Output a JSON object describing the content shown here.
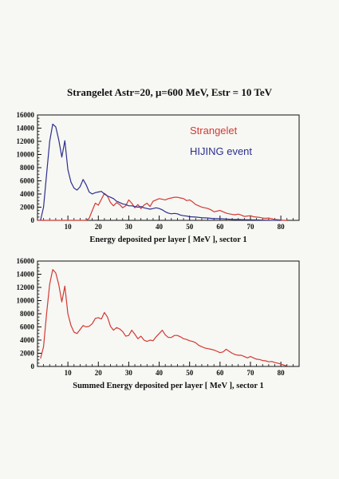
{
  "figure": {
    "title": "Strangelet Astr=20, μ=600 MeV, Estr = 10 TeV"
  },
  "colors": {
    "strangelet": "#d23a32",
    "hijing": "#2c2f8e",
    "summed": "#d23a32",
    "axis": "#111111"
  },
  "chart_data": [
    {
      "type": "line",
      "xlabel": "Energy deposited per layer [ MeV ], sector 1",
      "ylabel": "",
      "xlim": [
        0,
        86
      ],
      "ylim": [
        0,
        16000
      ],
      "x_ticks": [
        10,
        20,
        30,
        40,
        50,
        60,
        70,
        80
      ],
      "y_ticks": [
        0,
        2000,
        4000,
        6000,
        8000,
        10000,
        12000,
        14000,
        16000
      ],
      "legend_position": "top-right",
      "series": [
        {
          "name": "Strangelet",
          "color": "#d23a32",
          "x": [
            0,
            14,
            16,
            17,
            18,
            19,
            20,
            21,
            22,
            23,
            24,
            25,
            26,
            27,
            28,
            29,
            30,
            31,
            32,
            33,
            34,
            35,
            36,
            37,
            38,
            39,
            40,
            41,
            42,
            43,
            44,
            45,
            46,
            47,
            48,
            49,
            50,
            51,
            52,
            53,
            54,
            55,
            56,
            57,
            58,
            59,
            60,
            61,
            62,
            63,
            64,
            65,
            66,
            67,
            68,
            69,
            70,
            71,
            72,
            73,
            74,
            75,
            76,
            77,
            78,
            79,
            80,
            81,
            82
          ],
          "y": [
            0,
            0,
            0,
            300,
            1500,
            2600,
            2300,
            3200,
            4100,
            3700,
            2700,
            2200,
            2700,
            2400,
            1900,
            2200,
            3100,
            2600,
            1900,
            2400,
            1800,
            2300,
            2600,
            2100,
            2900,
            3100,
            3300,
            3200,
            3100,
            3300,
            3400,
            3500,
            3500,
            3400,
            3300,
            3000,
            3100,
            2800,
            2400,
            2200,
            2000,
            1900,
            1800,
            1600,
            1300,
            1400,
            1500,
            1300,
            1100,
            1000,
            900,
            850,
            950,
            800,
            600,
            650,
            700,
            550,
            500,
            450,
            350,
            300,
            350,
            250,
            150,
            100,
            50,
            0,
            0
          ]
        },
        {
          "name": "HIJING event",
          "color": "#2c2f8e",
          "x": [
            1,
            2,
            3,
            4,
            5,
            6,
            7,
            8,
            9,
            10,
            11,
            12,
            13,
            14,
            15,
            16,
            17,
            18,
            19,
            20,
            21,
            22,
            23,
            24,
            25,
            26,
            27,
            28,
            29,
            30,
            31,
            32,
            33,
            34,
            35,
            36,
            37,
            38,
            39,
            40,
            41,
            42,
            43,
            44,
            45,
            46,
            47,
            48,
            49,
            50,
            52,
            54,
            56,
            58,
            60,
            62,
            64,
            66,
            68,
            70,
            72,
            74,
            76,
            80
          ],
          "y": [
            0,
            2000,
            7000,
            12000,
            14600,
            14200,
            12200,
            9600,
            12100,
            7700,
            5800,
            4900,
            4600,
            5100,
            6200,
            5400,
            4300,
            4000,
            4200,
            4300,
            4400,
            4000,
            3700,
            3500,
            3300,
            2900,
            2700,
            2500,
            2400,
            2200,
            2200,
            2100,
            2000,
            2100,
            1900,
            1800,
            1700,
            1800,
            1900,
            1800,
            1600,
            1300,
            1100,
            1000,
            1050,
            1000,
            800,
            700,
            650,
            550,
            500,
            400,
            350,
            250,
            250,
            200,
            150,
            120,
            100,
            80,
            60,
            40,
            30,
            0
          ]
        }
      ]
    },
    {
      "type": "line",
      "xlabel": "Summed Energy deposited per layer [ MeV ], sector 1",
      "ylabel": "",
      "xlim": [
        0,
        86
      ],
      "ylim": [
        0,
        16000
      ],
      "x_ticks": [
        10,
        20,
        30,
        40,
        50,
        60,
        70,
        80
      ],
      "y_ticks": [
        0,
        2000,
        4000,
        6000,
        8000,
        10000,
        12000,
        14000,
        16000
      ],
      "series": [
        {
          "color": "#d23a32",
          "x": [
            1,
            2,
            3,
            4,
            5,
            6,
            7,
            8,
            9,
            10,
            11,
            12,
            13,
            14,
            15,
            16,
            17,
            18,
            19,
            20,
            21,
            22,
            23,
            24,
            25,
            26,
            27,
            28,
            29,
            30,
            31,
            32,
            33,
            34,
            35,
            36,
            37,
            38,
            39,
            40,
            41,
            42,
            43,
            44,
            45,
            46,
            47,
            48,
            49,
            50,
            51,
            52,
            53,
            54,
            55,
            56,
            57,
            58,
            59,
            60,
            61,
            62,
            63,
            64,
            65,
            66,
            67,
            68,
            69,
            70,
            71,
            72,
            73,
            74,
            75,
            76,
            77,
            78,
            79,
            80,
            81,
            82
          ],
          "y": [
            1200,
            3000,
            8000,
            12500,
            14700,
            14200,
            12400,
            9800,
            12200,
            8000,
            6200,
            5200,
            5000,
            5600,
            6200,
            6000,
            6100,
            6500,
            7300,
            7400,
            7200,
            8200,
            7500,
            6100,
            5500,
            5900,
            5700,
            5300,
            4600,
            4700,
            5500,
            4900,
            4200,
            4600,
            4000,
            3800,
            4000,
            3900,
            4500,
            5000,
            5500,
            4800,
            4400,
            4400,
            4700,
            4700,
            4500,
            4200,
            4100,
            3900,
            3800,
            3600,
            3200,
            3000,
            2800,
            2700,
            2600,
            2500,
            2300,
            2100,
            2200,
            2600,
            2300,
            2000,
            1800,
            1700,
            1700,
            1500,
            1300,
            1500,
            1300,
            1100,
            1050,
            900,
            850,
            700,
            750,
            600,
            500,
            350,
            200,
            80
          ]
        }
      ]
    }
  ]
}
